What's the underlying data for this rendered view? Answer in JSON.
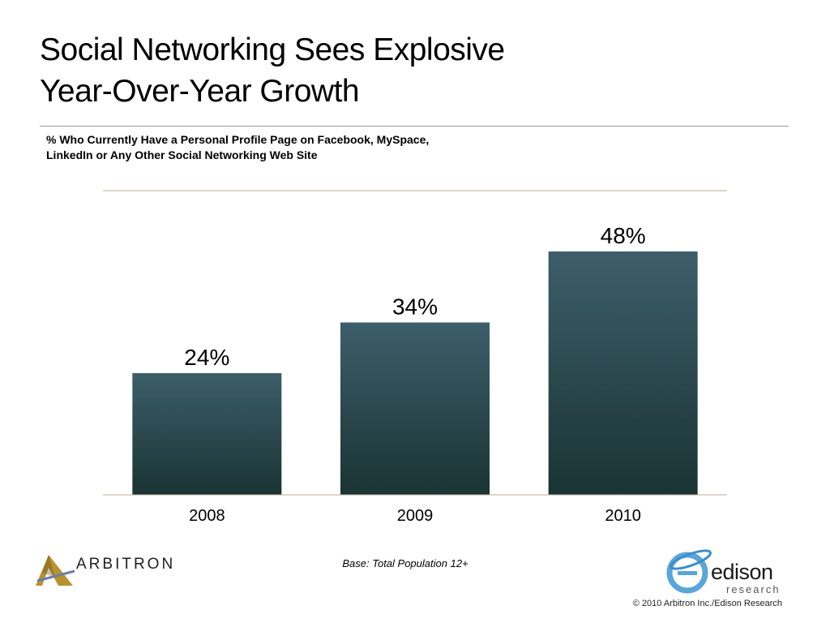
{
  "header": {
    "title_line1": "Social Networking Sees Explosive",
    "title_line2": "Year-Over-Year Growth",
    "subtitle_line1": "% Who Currently Have a Personal Profile Page on Facebook, MySpace,",
    "subtitle_line2": "LinkedIn or Any Other Social Networking Web Site"
  },
  "chart_data": {
    "type": "bar",
    "categories": [
      "2008",
      "2009",
      "2010"
    ],
    "values": [
      24,
      34,
      48
    ],
    "data_labels": [
      "24%",
      "34%",
      "48%"
    ],
    "ylim": [
      0,
      60
    ],
    "grid": false,
    "legend": "none",
    "colors": {
      "bar_top": "#3c5e6a",
      "bar_bottom": "#1a3333",
      "axis": "#b8ad98"
    }
  },
  "footer": {
    "base_note": "Base: Total Population 12+",
    "copyright": "© 2010 Arbitron Inc./Edison Research",
    "arbitron_logo_text": "ARBITRON",
    "edison_logo_text": "edison",
    "edison_logo_sub": "research"
  }
}
